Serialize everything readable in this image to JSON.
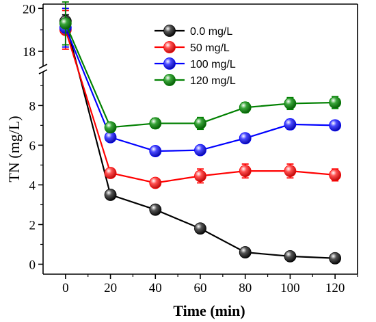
{
  "chart_data": {
    "type": "line",
    "xlabel": "Time (min)",
    "ylabel": "TN (mg/L)",
    "x": [
      0,
      20,
      40,
      60,
      80,
      100,
      120
    ],
    "x_ticks": [
      0,
      20,
      40,
      60,
      80,
      100,
      120
    ],
    "xlim": [
      -10,
      130
    ],
    "y_lower_ticks": [
      0,
      2,
      4,
      6,
      8
    ],
    "y_lower_range": [
      -0.5,
      9.7
    ],
    "y_upper_ticks": [
      18,
      20
    ],
    "y_upper_range": [
      17.3,
      20.2
    ],
    "axis_break": "y between 9.7 and 17.3",
    "legend_position": "top-center",
    "series": [
      {
        "name": "0.0 mg/L",
        "color": "#000000",
        "values": [
          19.4,
          3.5,
          2.75,
          1.8,
          0.6,
          0.4,
          0.3
        ],
        "errors": [
          0.3,
          0.15,
          0.15,
          0.15,
          0.12,
          0.12,
          0.12
        ]
      },
      {
        "name": "50 mg/L",
        "color": "#ff0000",
        "values": [
          19.0,
          4.6,
          4.1,
          4.45,
          4.7,
          4.7,
          4.5
        ],
        "errors": [
          0.9,
          0.15,
          0.2,
          0.35,
          0.35,
          0.35,
          0.3
        ]
      },
      {
        "name": "100 mg/L",
        "color": "#0000ff",
        "values": [
          19.1,
          6.4,
          5.7,
          5.75,
          6.35,
          7.05,
          7.0
        ],
        "errors": [
          0.9,
          0.15,
          0.15,
          0.2,
          0.2,
          0.25,
          0.2
        ]
      },
      {
        "name": "120 mg/L",
        "color": "#008000",
        "values": [
          19.3,
          6.9,
          7.1,
          7.1,
          7.9,
          8.1,
          8.15
        ],
        "errors": [
          1.0,
          0.2,
          0.25,
          0.3,
          0.25,
          0.3,
          0.3
        ]
      }
    ]
  }
}
